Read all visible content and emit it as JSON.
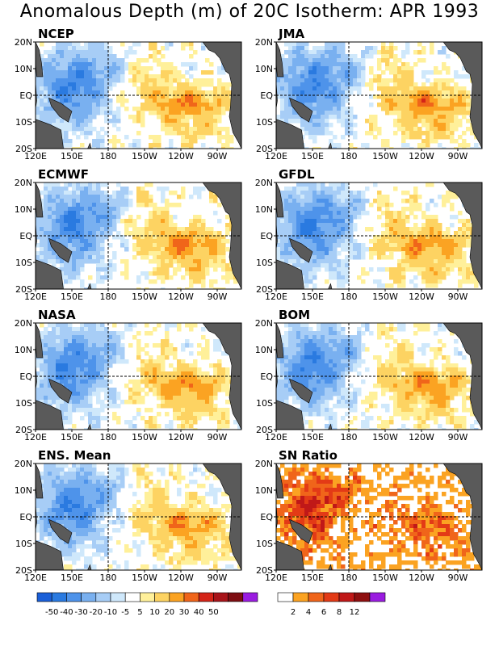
{
  "title": "Anomalous Depth (m) of 20C Isotherm: APR 1993",
  "axes": {
    "lat_ticks": [
      "20N",
      "10N",
      "EQ",
      "10S",
      "20S"
    ],
    "lon_ticks": [
      "120E",
      "150E",
      "180",
      "150W",
      "120W",
      "90W"
    ]
  },
  "colors": {
    "land": "#5a5a5a",
    "anomaly_scale": [
      "#1a5fd8",
      "#2a7ae0",
      "#4e93ea",
      "#79b0f0",
      "#a7cdf6",
      "#cfe8fb",
      "#ffffff",
      "#fff09a",
      "#fdd362",
      "#fba322",
      "#f0651a",
      "#d42418",
      "#a8141a",
      "#7e0e12",
      "#9a1ce0"
    ],
    "snr_scale": [
      "#ffffff",
      "#fba322",
      "#f0651a",
      "#e33a16",
      "#c01818",
      "#8e0f10",
      "#9a1ce0"
    ]
  },
  "chart_data": [
    {
      "type": "heatmap",
      "title": "NCEP",
      "region": "tropical Pacific 120E-70W, 20S-20N",
      "pattern": "negative west, positive east"
    },
    {
      "type": "heatmap",
      "title": "JMA",
      "region": "tropical Pacific 120E-70W, 20S-20N",
      "pattern": "negative west, positive east"
    },
    {
      "type": "heatmap",
      "title": "ECMWF",
      "region": "tropical Pacific 120E-70W, 20S-20N",
      "pattern": "negative west, positive east"
    },
    {
      "type": "heatmap",
      "title": "GFDL",
      "region": "tropical Pacific 120E-70W, 20S-20N",
      "pattern": "negative west, positive east"
    },
    {
      "type": "heatmap",
      "title": "NASA",
      "region": "tropical Pacific 120E-70W, 20S-20N",
      "pattern": "negative west, positive east"
    },
    {
      "type": "heatmap",
      "title": "BOM",
      "region": "tropical Pacific 120E-70W, 20S-20N",
      "pattern": "negative west, positive east"
    },
    {
      "type": "heatmap",
      "title": "ENS. Mean",
      "region": "tropical Pacific 120E-70W, 20S-20N",
      "pattern": "negative west, positive east"
    },
    {
      "type": "heatmap",
      "title": "SN Ratio",
      "region": "tropical Pacific 120E-70W, 20S-20N",
      "pattern": "high ratio along equator"
    }
  ],
  "legend_anomaly": {
    "labels": [
      "-50",
      "-40",
      "-30",
      "-20",
      "-10",
      "-5",
      "5",
      "10",
      "20",
      "30",
      "40",
      "50"
    ]
  },
  "legend_snr": {
    "labels": [
      "2",
      "4",
      "6",
      "8",
      "12"
    ]
  }
}
